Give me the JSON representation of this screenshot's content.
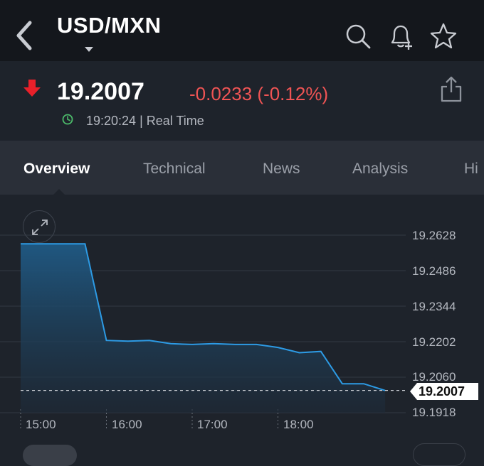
{
  "header": {
    "title": "USD/MXN",
    "flag_colors": [
      "#006847",
      "#ffffff",
      "#ce1126"
    ],
    "icons": [
      "back-chevron-icon",
      "search-icon",
      "bell-plus-icon",
      "star-icon"
    ]
  },
  "quote": {
    "price": "19.2007",
    "change": "-0.0233 (-0.12%)",
    "time": "19:20:24 | Real Time",
    "direction": "down",
    "down_color": "#f05454",
    "clock_color": "#4cbb6a"
  },
  "tabs": [
    {
      "label": "Overview",
      "active": true
    },
    {
      "label": "Technical",
      "active": false
    },
    {
      "label": "News",
      "active": false
    },
    {
      "label": "Analysis",
      "active": false
    },
    {
      "label": "Hi",
      "active": false
    }
  ],
  "chart_data": {
    "type": "area",
    "title": "",
    "xlabel": "",
    "ylabel": "",
    "x_tick_labels": [
      "15:00",
      "16:00",
      "17:00",
      "18:00"
    ],
    "y_tick_labels": [
      "19.2628",
      "19.2486",
      "19.2344",
      "19.2202",
      "19.2060",
      "19.1918"
    ],
    "ylim": [
      19.1918,
      19.2628
    ],
    "x_minutes_since_first_tick": [
      0,
      45,
      60,
      75,
      90,
      105,
      120,
      135,
      150,
      165,
      180,
      195,
      210,
      225,
      240,
      255
    ],
    "series": [
      {
        "values": [
          19.2593,
          19.2593,
          19.2207,
          19.2204,
          19.2207,
          19.2194,
          19.2191,
          19.2194,
          19.2191,
          19.2191,
          19.2179,
          19.2158,
          19.2163,
          19.2034,
          19.2034,
          19.2007
        ]
      }
    ],
    "current_value": "19.2007",
    "line_color": "#2d9be5",
    "grid": true
  }
}
